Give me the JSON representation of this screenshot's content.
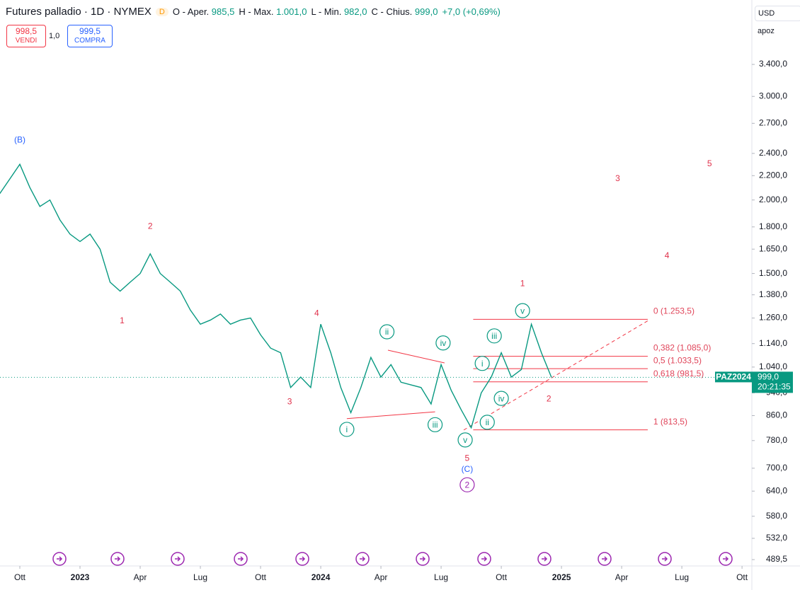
{
  "header": {
    "title": "Futures palladio · 1D · NYMEX",
    "badge": "D",
    "ohlc": [
      {
        "label": "O - Aper.",
        "value": "985,5"
      },
      {
        "label": "H - Max.",
        "value": "1.001,0"
      },
      {
        "label": "L - Min.",
        "value": "982,0"
      },
      {
        "label": "C - Chius.",
        "value": "999,0"
      }
    ],
    "change": "+7,0 (+0,69%)",
    "sell": {
      "price": "998,5",
      "label": "VENDI"
    },
    "spread": "1,0",
    "buy": {
      "price": "999,5",
      "label": "COMPRA"
    },
    "currency": "USD",
    "scale_mode": "apoz"
  },
  "chart_data": {
    "type": "line",
    "log_scale": true,
    "xlim": [
      -0.988,
      36.49
    ],
    "xticks": [
      {
        "value": 0,
        "label": "Ott"
      },
      {
        "value": 3,
        "label": "2023"
      },
      {
        "value": 6,
        "label": "Apr"
      },
      {
        "value": 9,
        "label": "Lug"
      },
      {
        "value": 12,
        "label": "Ott"
      },
      {
        "value": 15,
        "label": "2024"
      },
      {
        "value": 18,
        "label": "Apr"
      },
      {
        "value": 21,
        "label": "Lug"
      },
      {
        "value": 24,
        "label": "Ott"
      },
      {
        "value": 27,
        "label": "2025"
      },
      {
        "value": 30,
        "label": "Apr"
      },
      {
        "value": 33,
        "label": "Lug"
      },
      {
        "value": 36,
        "label": "Ott"
      }
    ],
    "ylim": [
      477.5,
      4375
    ],
    "yticks": [
      {
        "value": 3400,
        "label": "3.400,0"
      },
      {
        "value": 3000,
        "label": "3.000,0"
      },
      {
        "value": 2700,
        "label": "2.700,0"
      },
      {
        "value": 2400,
        "label": "2.400,0"
      },
      {
        "value": 2200,
        "label": "2.200,0"
      },
      {
        "value": 2000,
        "label": "2.000,0"
      },
      {
        "value": 1800,
        "label": "1.800,0"
      },
      {
        "value": 1650,
        "label": "1.650,0"
      },
      {
        "value": 1500,
        "label": "1.500,0"
      },
      {
        "value": 1380,
        "label": "1.380,0"
      },
      {
        "value": 1260,
        "label": "1.260,0"
      },
      {
        "value": 1140,
        "label": "1.140,0"
      },
      {
        "value": 1040,
        "label": "1.040,0"
      },
      {
        "value": 940,
        "label": "940,0"
      },
      {
        "value": 860,
        "label": "860,0"
      },
      {
        "value": 780,
        "label": "780,0"
      },
      {
        "value": 700,
        "label": "700,0"
      },
      {
        "value": 640,
        "label": "640,0"
      },
      {
        "value": 580,
        "label": "580,0"
      },
      {
        "value": 532,
        "label": "532,0"
      },
      {
        "value": 489.5,
        "label": "489,5"
      }
    ],
    "series": [
      {
        "name": "PAZ2024",
        "color": "#089981",
        "x": [
          -1,
          0,
          0.5,
          1,
          1.5,
          2,
          2.5,
          3,
          3.5,
          4,
          4.5,
          5,
          5.5,
          6,
          6.5,
          7,
          7.5,
          8,
          8.5,
          9,
          9.5,
          10,
          10.5,
          11,
          11.5,
          12,
          12.5,
          13,
          13.5,
          14,
          14.5,
          15,
          15.5,
          16,
          16.5,
          17,
          17.5,
          18,
          18.5,
          19,
          19.5,
          20,
          20.5,
          21,
          21.5,
          22,
          22.5,
          23,
          23.5,
          24,
          24.5,
          25,
          25.5,
          26,
          26.5
        ],
        "values": [
          2050,
          2300,
          2100,
          1950,
          2000,
          1850,
          1750,
          1700,
          1750,
          1650,
          1450,
          1400,
          1450,
          1500,
          1620,
          1500,
          1450,
          1400,
          1300,
          1230,
          1250,
          1280,
          1230,
          1250,
          1260,
          1180,
          1120,
          1100,
          960,
          1000,
          960,
          1230,
          1100,
          960,
          870,
          960,
          1080,
          1000,
          1050,
          980,
          970,
          960,
          900,
          1050,
          950,
          880,
          820,
          940,
          1000,
          1100,
          1000,
          1030,
          1230,
          1100,
          999
        ],
        "last_label": "999,0",
        "countdown": "20:21:35"
      }
    ],
    "fib": {
      "xlim": [
        22.6,
        31.3
      ],
      "color": "#f23645",
      "levels": [
        {
          "label": "0 (1.253,5)",
          "value": 1253.5
        },
        {
          "label": "0,382 (1.085,0)",
          "value": 1085
        },
        {
          "label": "0,5 (1.033,5)",
          "value": 1033.5
        },
        {
          "label": "0,618 (981,5)",
          "value": 981.5
        },
        {
          "label": "1 (813,5)",
          "value": 813.5
        }
      ]
    },
    "trendlines": [
      {
        "x": [
          22.13,
          31.38
        ],
        "values": [
          813,
          1251
        ],
        "dashed": true,
        "color": "#f23645"
      },
      {
        "x": [
          18.35,
          21.17
        ],
        "values": [
          1111,
          1057
        ],
        "dashed": false,
        "color": "#f23645"
      },
      {
        "x": [
          16.3,
          20.7
        ],
        "values": [
          850,
          873
        ],
        "dashed": false,
        "color": "#f23645"
      }
    ],
    "annotations": [
      {
        "text": "(B)",
        "x": 0,
        "y": 2535,
        "color": "#2962ff",
        "circled": false
      },
      {
        "text": "2",
        "x": 6.5,
        "y": 1808,
        "color": "#e0314b",
        "circled": false
      },
      {
        "text": "1",
        "x": 5.1,
        "y": 1248,
        "color": "#e0314b",
        "circled": false
      },
      {
        "text": "3",
        "x": 13.45,
        "y": 910,
        "color": "#e0314b",
        "circled": false
      },
      {
        "text": "4",
        "x": 14.8,
        "y": 1285,
        "color": "#e0314b",
        "circled": false
      },
      {
        "text": "i",
        "x": 16.3,
        "y": 815,
        "color": "#089981",
        "circled": true
      },
      {
        "text": "ii",
        "x": 18.3,
        "y": 1194,
        "color": "#089981",
        "circled": true
      },
      {
        "text": "iii",
        "x": 20.7,
        "y": 830,
        "color": "#089981",
        "circled": true
      },
      {
        "text": "iv",
        "x": 21.1,
        "y": 1143,
        "color": "#089981",
        "circled": true
      },
      {
        "text": "v",
        "x": 22.2,
        "y": 782,
        "color": "#089981",
        "circled": true
      },
      {
        "text": "5",
        "x": 22.3,
        "y": 729,
        "color": "#e0314b",
        "circled": false
      },
      {
        "text": "(C)",
        "x": 22.3,
        "y": 698,
        "color": "#2962ff",
        "circled": false
      },
      {
        "text": "2",
        "x": 22.3,
        "y": 656,
        "color": "#9c27b0",
        "circled": true
      },
      {
        "text": "i",
        "x": 23.05,
        "y": 1055,
        "color": "#089981",
        "circled": true
      },
      {
        "text": "ii",
        "x": 23.3,
        "y": 838,
        "color": "#089981",
        "circled": true
      },
      {
        "text": "iii",
        "x": 23.65,
        "y": 1175,
        "color": "#089981",
        "circled": true
      },
      {
        "text": "iv",
        "x": 24.0,
        "y": 920,
        "color": "#089981",
        "circled": true
      },
      {
        "text": "v",
        "x": 25.06,
        "y": 1297,
        "color": "#089981",
        "circled": true
      },
      {
        "text": "1",
        "x": 25.06,
        "y": 1445,
        "color": "#e0314b",
        "circled": false
      },
      {
        "text": "2",
        "x": 26.37,
        "y": 920,
        "color": "#e0314b",
        "circled": false
      },
      {
        "text": "3",
        "x": 29.8,
        "y": 2178,
        "color": "#e0314b",
        "circled": false
      },
      {
        "text": "4",
        "x": 32.26,
        "y": 1611,
        "color": "#e0314b",
        "circled": false
      },
      {
        "text": "5",
        "x": 34.38,
        "y": 2310,
        "color": "#e0314b",
        "circled": false
      }
    ]
  }
}
